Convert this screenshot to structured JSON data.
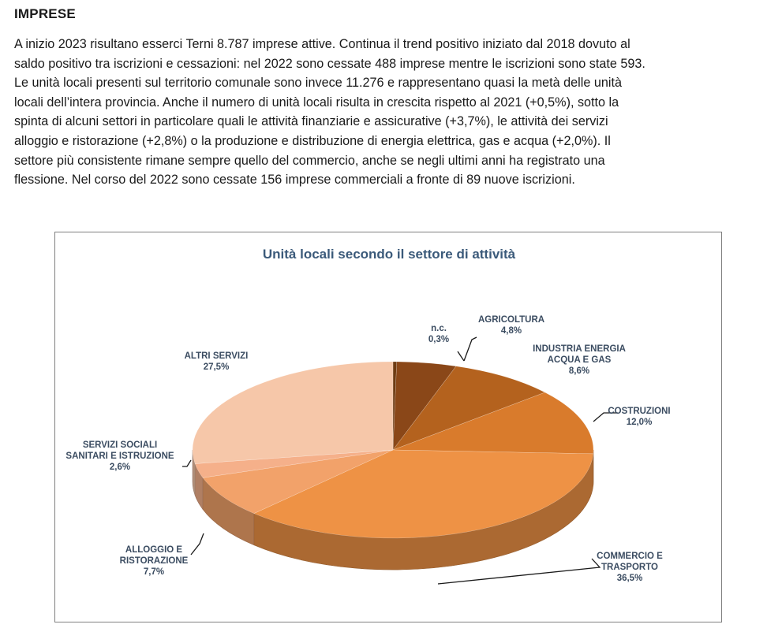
{
  "heading": "IMPRESE",
  "paragraph_lines": [
    "A inizio 2023 risultano esserci Terni 8.787 imprese attive. Continua il trend positivo iniziato dal 2018 dovuto al",
    "saldo positivo tra iscrizioni e cessazioni: nel 2022 sono cessate 488 imprese mentre le iscrizioni sono state 593.",
    "Le unità locali presenti sul territorio comunale sono invece 11.276 e rappresentano quasi la metà delle unità",
    "locali dell’intera provincia. Anche il numero di unità locali risulta in crescita rispetto al 2021 (+0,5%), sotto la",
    "spinta di alcuni settori in particolare quali le attività finanziarie e assicurative (+3,7%), le attività dei servizi",
    "alloggio e ristorazione (+2,8%) o la produzione e distribuzione di energia elettrica, gas e acqua (+2,0%). Il",
    "settore più consistente rimane sempre quello del commercio, anche se negli ultimi anni ha registrato una",
    "flessione. Nel corso del 2022 sono cessate 156 imprese commerciali a fronte di 89 nuove iscrizioni."
  ],
  "chart_data": {
    "type": "pie",
    "title": "Unità locali secondo il settore di attività",
    "slices": [
      {
        "label": [
          "n.c."
        ],
        "value_label": "0,3%",
        "value": 0.3,
        "color": "#6e3b12"
      },
      {
        "label": [
          "AGRICOLTURA"
        ],
        "value_label": "4,8%",
        "value": 4.8,
        "color": "#8a4718"
      },
      {
        "label": [
          "INDUSTRIA ENERGIA",
          "ACQUA E GAS"
        ],
        "value_label": "8,6%",
        "value": 8.6,
        "color": "#b4621e"
      },
      {
        "label": [
          "COSTRUZIONI"
        ],
        "value_label": "12,0%",
        "value": 12.0,
        "color": "#d97b2c"
      },
      {
        "label": [
          "COMMERCIO E",
          "TRASPORTO"
        ],
        "value_label": "36,5%",
        "value": 36.5,
        "color": "#ee9245"
      },
      {
        "label": [
          "ALLOGGIO E",
          "RISTORAZIONE"
        ],
        "value_label": "7,7%",
        "value": 7.7,
        "color": "#f2a26a"
      },
      {
        "label": [
          "SERVIZI SOCIALI",
          "SANITARI E ISTRUZIONE"
        ],
        "value_label": "2,6%",
        "value": 2.6,
        "color": "#f5b08a"
      },
      {
        "label": [
          "ALTRI SERVIZI"
        ],
        "value_label": "27,5%",
        "value": 27.5,
        "color": "#f6c7a9"
      }
    ]
  }
}
